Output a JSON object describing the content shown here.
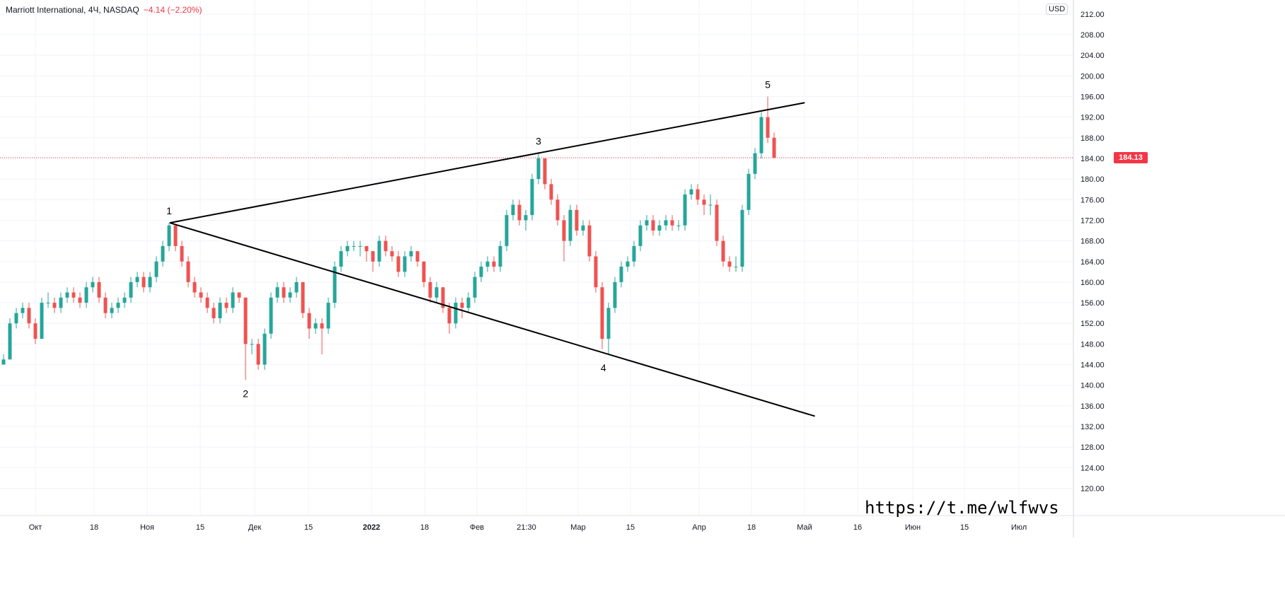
{
  "header": {
    "symbol": "Marriott International, 4Ч, NASDAQ",
    "change": "−4.14 (−2.20%)"
  },
  "currency_label": "USD",
  "watermark": "https://t.me/wlfwvs",
  "colors": {
    "up": "#26a69a",
    "down": "#ef5350",
    "last_price": "#f23645",
    "trendline": "#000000",
    "grid": "#f0f3fa"
  },
  "chart_data": {
    "type": "candlestick",
    "title": "",
    "ylim": [
      118,
      214
    ],
    "y_ticks": [
      "212.00",
      "208.00",
      "204.00",
      "200.00",
      "196.00",
      "192.00",
      "188.00",
      "184.00",
      "180.00",
      "176.00",
      "172.00",
      "168.00",
      "164.00",
      "160.00",
      "156.00",
      "152.00",
      "148.00",
      "144.00",
      "140.00",
      "136.00",
      "132.00",
      "128.00",
      "124.00",
      "120.00"
    ],
    "x_ticks": [
      "Окт",
      "18",
      "Ноя",
      "15",
      "Дек",
      "15",
      "2022",
      "18",
      "Фев",
      "21:30",
      "Мар",
      "15",
      "Апр",
      "18",
      "Май",
      "16",
      "Июн",
      "15",
      "Июл"
    ],
    "last_price": 184.13,
    "last_price_label": "184.13",
    "candles": [
      [
        144,
        146,
        144,
        145
      ],
      [
        145,
        153,
        145,
        152
      ],
      [
        152,
        155,
        151,
        154
      ],
      [
        154,
        156,
        153,
        155
      ],
      [
        155,
        156,
        151,
        152
      ],
      [
        152,
        153,
        148,
        149
      ],
      [
        149,
        157,
        149,
        156
      ],
      [
        156,
        158,
        155,
        156
      ],
      [
        156,
        157,
        154,
        155
      ],
      [
        155,
        158,
        154,
        157
      ],
      [
        157,
        159,
        156,
        158
      ],
      [
        158,
        159,
        156,
        157
      ],
      [
        157,
        158,
        155,
        156
      ],
      [
        156,
        160,
        155,
        159
      ],
      [
        159,
        161,
        158,
        160
      ],
      [
        160,
        161,
        156,
        157
      ],
      [
        157,
        158,
        153,
        154
      ],
      [
        154,
        156,
        153,
        155
      ],
      [
        155,
        157,
        154,
        156
      ],
      [
        156,
        158,
        155,
        157
      ],
      [
        157,
        161,
        156,
        160
      ],
      [
        160,
        162,
        159,
        161
      ],
      [
        161,
        162,
        158,
        159
      ],
      [
        159,
        162,
        158,
        161
      ],
      [
        161,
        165,
        160,
        164
      ],
      [
        164,
        168,
        163,
        167
      ],
      [
        167,
        171.5,
        166,
        171
      ],
      [
        171,
        171,
        166,
        167
      ],
      [
        167,
        168,
        163,
        164
      ],
      [
        164,
        165,
        159,
        160
      ],
      [
        160,
        161,
        157,
        158
      ],
      [
        158,
        159,
        156,
        157
      ],
      [
        157,
        158,
        154,
        155
      ],
      [
        155,
        156,
        152,
        153
      ],
      [
        153,
        157,
        152,
        156
      ],
      [
        156,
        157,
        154,
        155
      ],
      [
        155,
        159,
        154,
        158
      ],
      [
        158,
        158,
        156,
        157
      ],
      [
        157,
        157,
        141,
        148
      ],
      [
        148,
        149,
        146,
        148
      ],
      [
        148,
        149,
        143,
        144
      ],
      [
        144,
        151,
        143,
        150
      ],
      [
        150,
        158,
        149,
        157
      ],
      [
        157,
        160,
        156,
        159
      ],
      [
        159,
        160,
        156,
        157
      ],
      [
        157,
        159,
        156,
        158
      ],
      [
        158,
        161,
        157,
        160
      ],
      [
        160,
        160,
        153,
        154
      ],
      [
        154,
        155,
        149,
        151
      ],
      [
        151,
        153,
        150,
        152
      ],
      [
        152,
        153,
        146,
        151
      ],
      [
        151,
        157,
        150,
        156
      ],
      [
        156,
        164,
        155,
        163
      ],
      [
        163,
        167,
        162,
        166
      ],
      [
        166,
        168,
        165,
        167
      ],
      [
        167,
        168,
        166,
        167
      ],
      [
        167,
        168,
        165,
        167
      ],
      [
        167,
        167,
        164,
        166
      ],
      [
        166,
        166,
        162,
        164
      ],
      [
        164,
        169,
        163,
        168
      ],
      [
        168,
        169,
        165,
        166
      ],
      [
        166,
        167,
        164,
        165
      ],
      [
        165,
        166,
        161,
        162
      ],
      [
        162,
        166,
        161,
        165
      ],
      [
        165,
        167,
        164,
        166
      ],
      [
        166,
        166,
        163,
        164
      ],
      [
        164,
        164,
        159,
        160
      ],
      [
        160,
        161,
        156,
        157
      ],
      [
        157,
        160,
        156,
        159
      ],
      [
        159,
        159,
        154,
        155
      ],
      [
        155,
        156,
        150,
        152
      ],
      [
        152,
        157,
        151,
        156
      ],
      [
        156,
        157,
        153,
        155
      ],
      [
        155,
        158,
        154,
        157
      ],
      [
        157,
        162,
        156,
        161
      ],
      [
        161,
        164,
        160,
        163
      ],
      [
        163,
        165,
        162,
        164
      ],
      [
        164,
        165,
        162,
        163
      ],
      [
        163,
        168,
        162,
        167
      ],
      [
        167,
        174,
        166,
        173
      ],
      [
        173,
        176,
        172,
        175
      ],
      [
        175,
        176,
        171,
        172
      ],
      [
        172,
        174,
        170,
        173
      ],
      [
        173,
        181,
        172,
        180
      ],
      [
        180,
        185,
        179,
        184
      ],
      [
        184,
        184,
        178,
        179
      ],
      [
        179,
        180,
        175,
        176
      ],
      [
        176,
        177,
        171,
        172
      ],
      [
        172,
        173,
        164,
        168
      ],
      [
        168,
        175,
        167,
        174
      ],
      [
        174,
        175,
        169,
        170
      ],
      [
        170,
        172,
        169,
        171
      ],
      [
        171,
        172,
        164,
        165
      ],
      [
        165,
        166,
        158,
        159
      ],
      [
        159,
        160,
        147,
        149
      ],
      [
        149,
        156,
        146,
        155
      ],
      [
        155,
        161,
        154,
        160
      ],
      [
        160,
        164,
        159,
        163
      ],
      [
        163,
        165,
        162,
        164
      ],
      [
        164,
        168,
        163,
        167
      ],
      [
        167,
        172,
        166,
        171
      ],
      [
        171,
        173,
        170,
        172
      ],
      [
        172,
        173,
        169,
        170
      ],
      [
        170,
        172,
        169,
        171
      ],
      [
        171,
        173,
        170,
        172
      ],
      [
        172,
        173,
        170,
        171
      ],
      [
        171,
        172,
        170,
        171
      ],
      [
        171,
        178,
        170,
        177
      ],
      [
        177,
        179,
        176,
        178
      ],
      [
        178,
        179,
        175,
        176
      ],
      [
        176,
        177,
        173,
        175
      ],
      [
        175,
        177,
        173,
        175
      ],
      [
        175,
        176,
        167,
        168
      ],
      [
        168,
        169,
        163,
        164
      ],
      [
        164,
        165,
        162,
        163
      ],
      [
        163,
        165,
        162,
        163
      ],
      [
        163,
        175,
        162,
        174
      ],
      [
        174,
        182,
        173,
        181
      ],
      [
        181,
        186,
        180,
        185
      ],
      [
        185,
        193,
        184,
        192
      ],
      [
        192,
        196,
        187,
        188
      ],
      [
        188,
        189,
        184,
        184.13
      ]
    ],
    "trendlines": [
      {
        "from": [
          26.1,
          171.5
        ],
        "to": [
          125.8,
          194.8
        ]
      },
      {
        "from": [
          26.1,
          171.5
        ],
        "to": [
          127.4,
          134.0
        ]
      }
    ],
    "wave_labels": [
      {
        "text": "1",
        "at": [
          26,
          171.5
        ],
        "pos": "above"
      },
      {
        "text": "2",
        "at": [
          38,
          141
        ],
        "pos": "below"
      },
      {
        "text": "3",
        "at": [
          84,
          185
        ],
        "pos": "above"
      },
      {
        "text": "4",
        "at": [
          94.2,
          146
        ],
        "pos": "below"
      },
      {
        "text": "5",
        "at": [
          120,
          196
        ],
        "pos": "above"
      }
    ]
  }
}
